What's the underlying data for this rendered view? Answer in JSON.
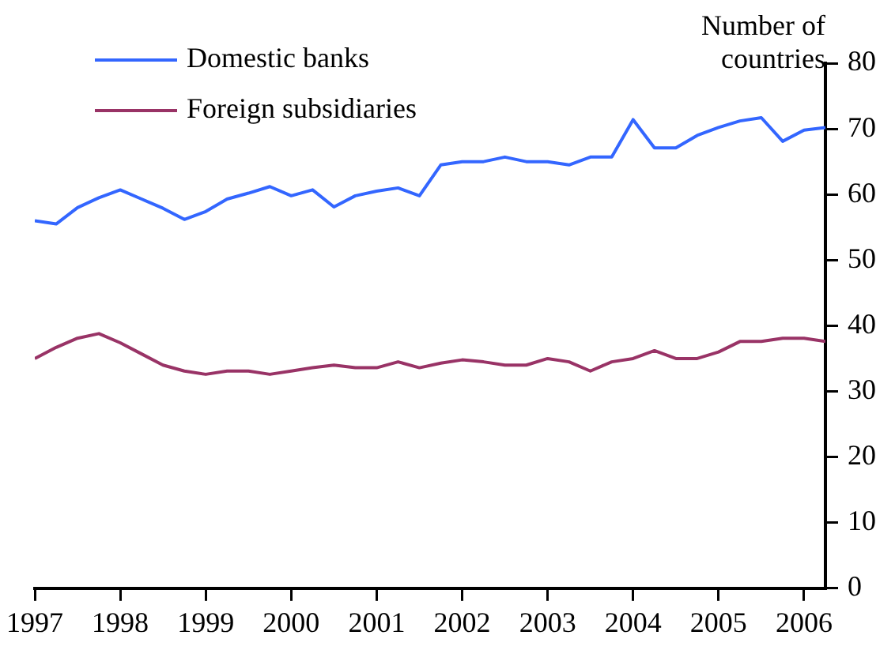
{
  "chart_data": {
    "type": "line",
    "ylabel": "Number of countries",
    "x": [
      1997,
      1997.25,
      1997.5,
      1997.75,
      1998,
      1998.25,
      1998.5,
      1998.75,
      1999,
      1999.25,
      1999.5,
      1999.75,
      2000,
      2000.25,
      2000.5,
      2000.75,
      2001,
      2001.25,
      2001.5,
      2001.75,
      2002,
      2002.25,
      2002.5,
      2002.75,
      2003,
      2003.25,
      2003.5,
      2003.75,
      2004,
      2004.25,
      2004.5,
      2004.75,
      2005,
      2005.25,
      2005.5,
      2005.75,
      2006,
      2006.25
    ],
    "series": [
      {
        "name": "Domestic banks",
        "color": "#3366ff",
        "values": [
          56,
          55.5,
          58,
          59.5,
          60.7,
          59.3,
          57.9,
          56.2,
          57.4,
          59.3,
          60.2,
          61.2,
          59.8,
          60.7,
          58.1,
          59.8,
          60.5,
          61,
          59.8,
          64.5,
          65,
          65,
          65.7,
          65,
          65,
          64.5,
          65.7,
          65.7,
          71.4,
          67.1,
          67.1,
          69,
          70.2,
          71.2,
          71.7,
          68.1,
          69.8,
          70.2
        ]
      },
      {
        "name": "Foreign subsidiaries",
        "color": "#993366",
        "values": [
          35,
          36.7,
          38.1,
          38.8,
          37.4,
          35.7,
          34,
          33.1,
          32.6,
          33.1,
          33.1,
          32.6,
          33.1,
          33.6,
          34,
          33.6,
          33.6,
          34.5,
          33.6,
          34.3,
          34.8,
          34.5,
          34,
          34,
          35,
          34.5,
          33.1,
          34.5,
          35,
          36.2,
          35,
          35,
          36,
          37.6,
          37.6,
          38.1,
          38.1,
          37.6
        ]
      }
    ],
    "xlim": [
      1997,
      2006.25
    ],
    "xticks": [
      1997,
      1998,
      1999,
      2000,
      2001,
      2002,
      2003,
      2004,
      2005,
      2006
    ],
    "ylim": [
      0,
      80
    ],
    "yticks": [
      0,
      10,
      20,
      30,
      40,
      50,
      60,
      70,
      80
    ],
    "grid": false,
    "legend": "top left",
    "marker": "none",
    "line_style": "solid"
  }
}
